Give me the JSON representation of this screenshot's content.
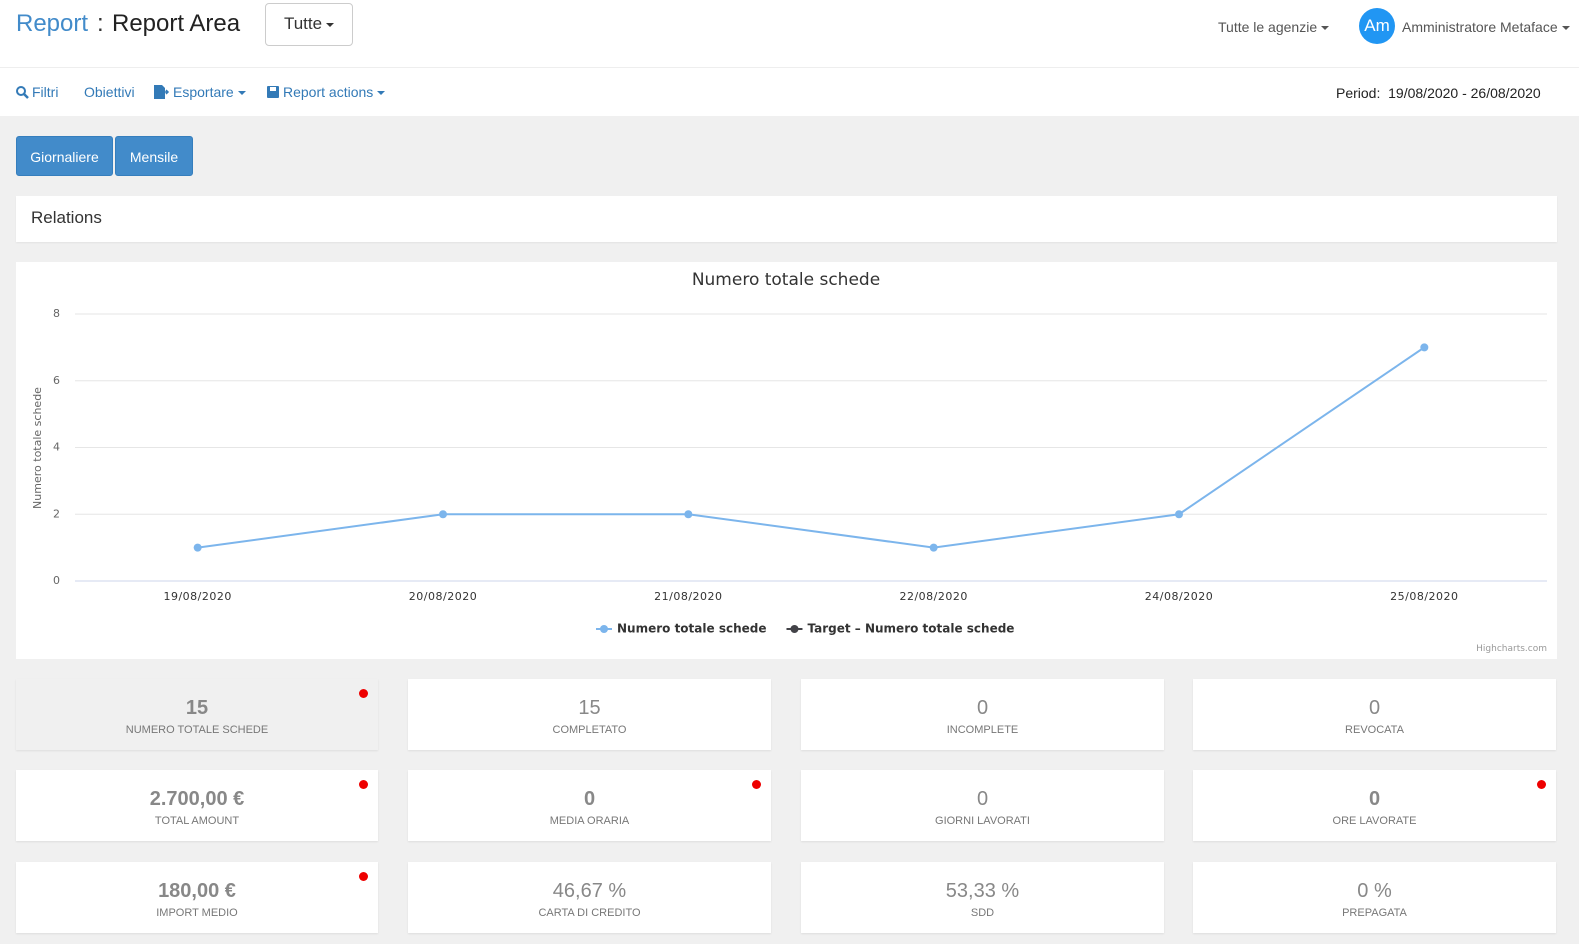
{
  "header": {
    "brand": "Report",
    "separator": ":",
    "title": "Report Area",
    "dropdown": "Tutte",
    "agency": "Tutte le agenzie",
    "avatar": "Am",
    "user": "Amministratore Metaface"
  },
  "toolbar": {
    "items": [
      "Filtri",
      "Obiettivi",
      "Esportare",
      "Report actions"
    ],
    "period_label": "Period:",
    "period_value": "19/08/2020 - 26/08/2020"
  },
  "tabs": [
    "Giornaliere",
    "Mensile"
  ],
  "panel_title": "Relations",
  "chart_data": {
    "type": "line",
    "title": "Numero totale schede",
    "y_label": "Numero totale schede",
    "categories": [
      "19/08/2020",
      "20/08/2020",
      "21/08/2020",
      "22/08/2020",
      "24/08/2020",
      "25/08/2020"
    ],
    "series": [
      {
        "name": "Numero totale schede",
        "color": "#7cb5ec",
        "values": [
          1,
          2,
          2,
          1,
          2,
          7
        ]
      },
      {
        "name": "Target – Numero totale schede",
        "color": "#434348",
        "values": [
          null,
          null,
          null,
          null,
          null,
          null
        ]
      }
    ],
    "ylim": [
      0,
      8
    ],
    "yticks": [
      0,
      2,
      4,
      6,
      8
    ],
    "grid": true,
    "legend": "bottom",
    "credits": "Highcharts.com"
  },
  "stats": [
    {
      "value": "15",
      "label": "NUMERO TOTALE SCHEDE",
      "flag": true,
      "active": true
    },
    {
      "value": "15",
      "label": "COMPLETATO",
      "flag": false,
      "active": false
    },
    {
      "value": "0",
      "label": "INCOMPLETE",
      "flag": false,
      "active": false
    },
    {
      "value": "0",
      "label": "REVOCATA",
      "flag": false,
      "active": false
    },
    {
      "value": "2.700,00 €",
      "label": "TOTAL AMOUNT",
      "flag": true,
      "active": false
    },
    {
      "value": "0",
      "label": "MEDIA ORARIA",
      "flag": true,
      "active": false
    },
    {
      "value": "0",
      "label": "GIORNI LAVORATI",
      "flag": false,
      "active": false
    },
    {
      "value": "0",
      "label": "ORE LAVORATE",
      "flag": true,
      "active": false
    },
    {
      "value": "180,00 €",
      "label": "IMPORT MEDIO",
      "flag": true,
      "active": false
    },
    {
      "value": "46,67 %",
      "label": "CARTA DI CREDITO",
      "flag": false,
      "active": false
    },
    {
      "value": "53,33 %",
      "label": "SDD",
      "flag": false,
      "active": false
    },
    {
      "value": "0 %",
      "label": "PREPAGATA",
      "flag": false,
      "active": false
    }
  ]
}
